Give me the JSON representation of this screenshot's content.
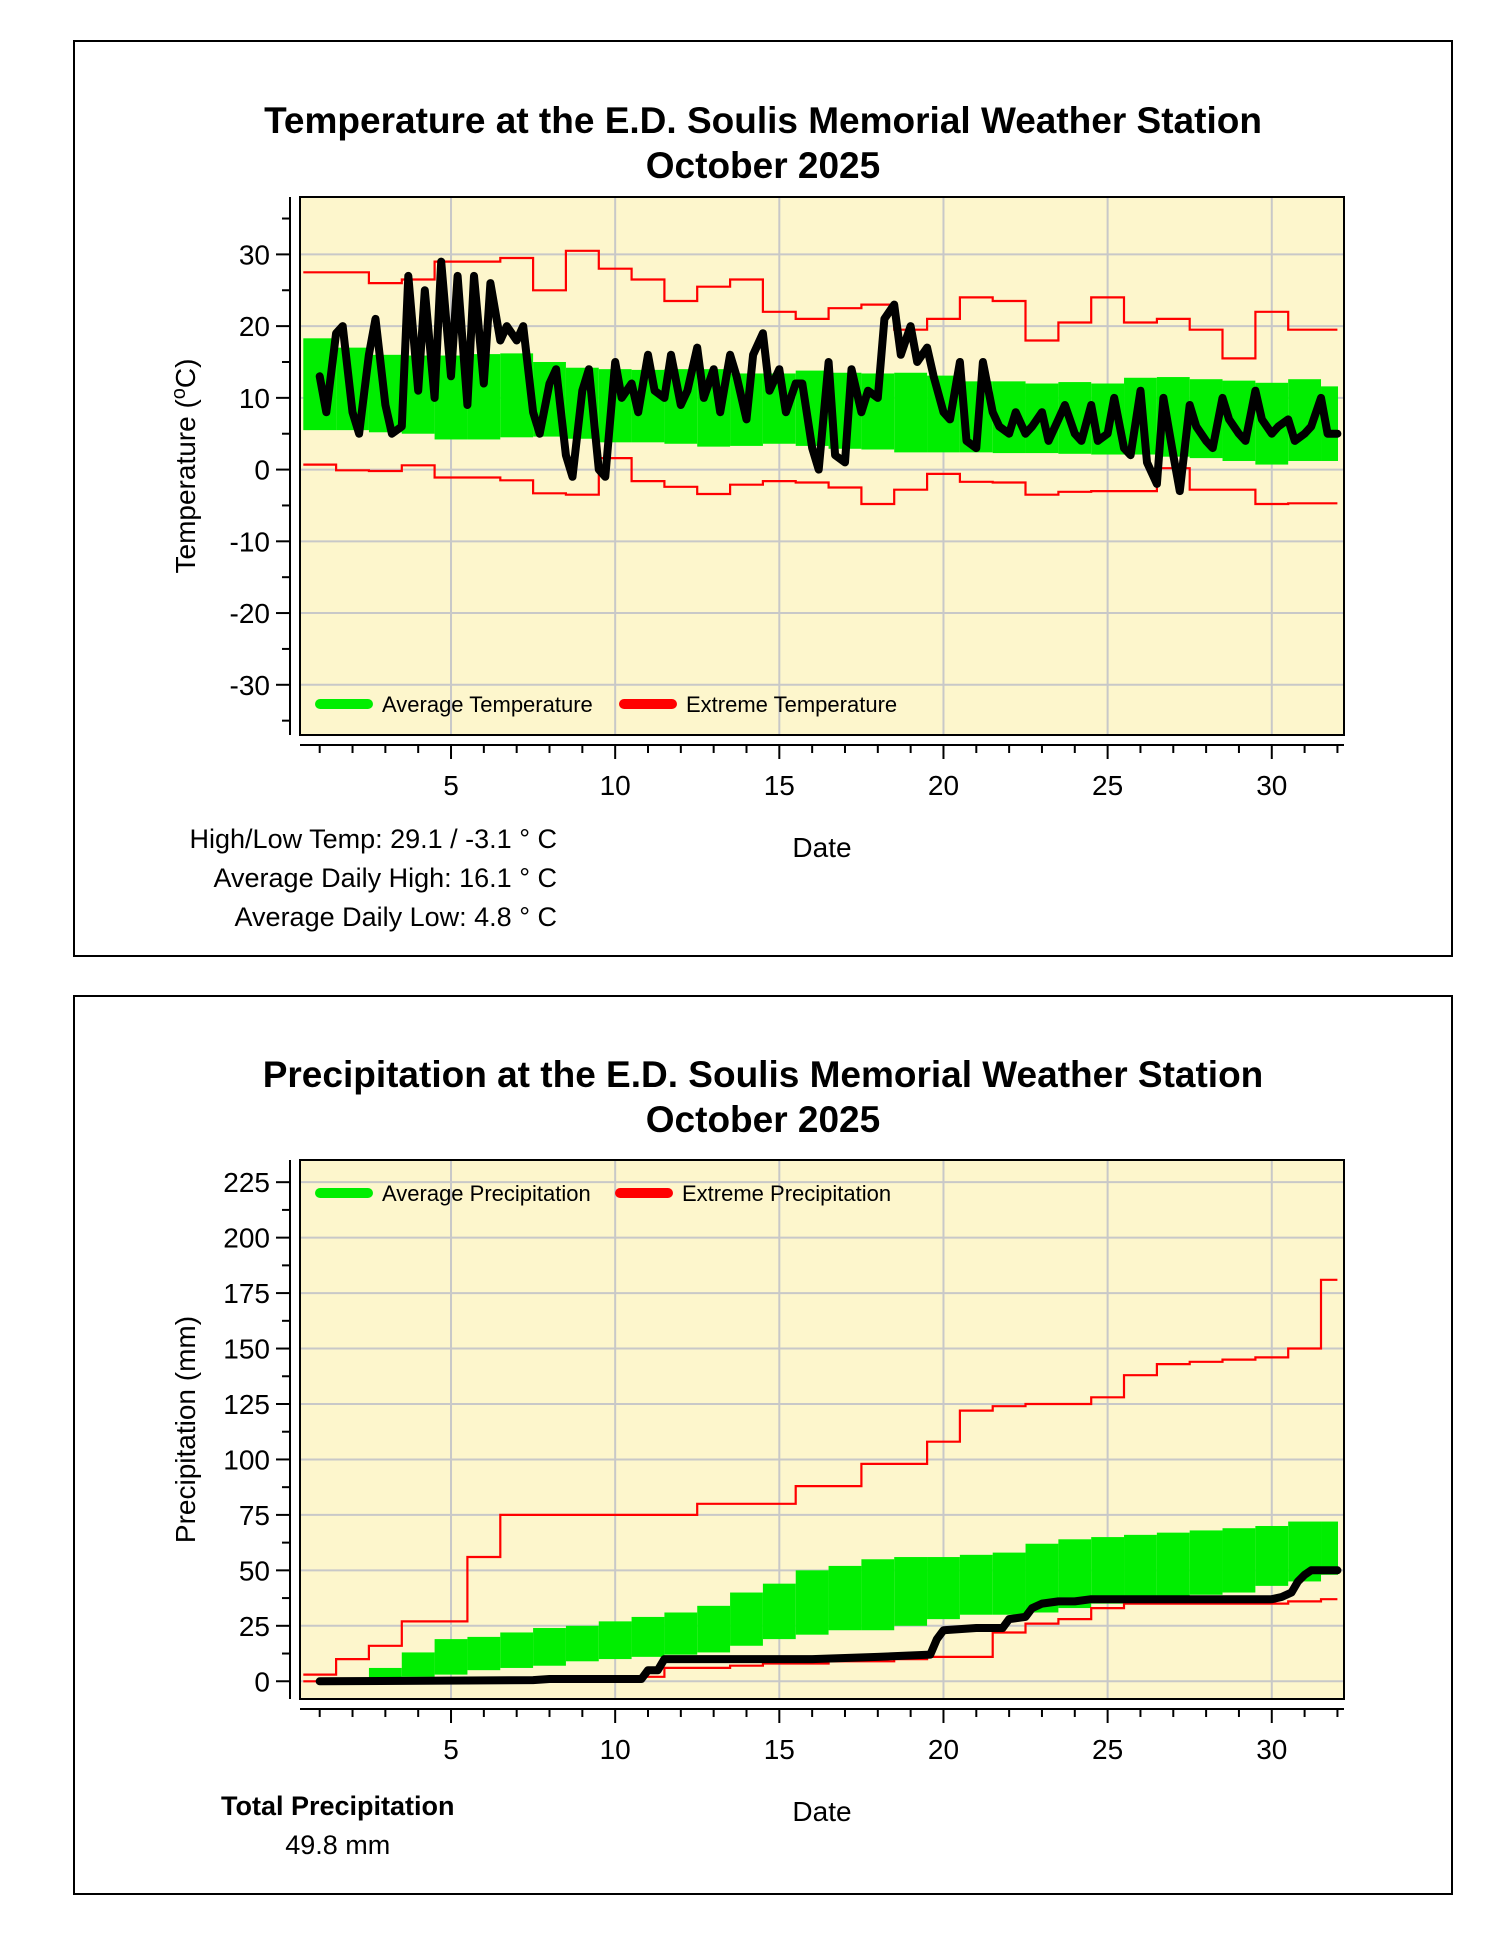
{
  "colors": {
    "plot_bg": "#fdf6cc",
    "grid": "#c8c8c8",
    "average": "#00ee00",
    "extreme": "#ff0000",
    "observed": "#000000"
  },
  "temperature_panel": {
    "title_line1": "Temperature at the E.D. Soulis Memorial Weather Station",
    "title_line2": "October 2025",
    "stats": {
      "high_low": "High/Low Temp:  29.1 / -3.1 ° C",
      "avg_high": "Average Daily High:  16.1 ° C",
      "avg_low": "Average Daily Low:  4.8 ° C"
    }
  },
  "precipitation_panel": {
    "title_line1": "Precipitation at the E.D. Soulis Memorial Weather Station",
    "title_line2": "October 2025",
    "total_label": "Total Precipitation",
    "total_value": "49.8 mm"
  },
  "chart_data": [
    {
      "type": "line",
      "title": "Temperature at the E.D. Soulis Memorial Weather Station October 2025",
      "xlabel": "Date",
      "ylabel": "Temperature (°C)",
      "xlim": [
        0.4,
        32.2
      ],
      "ylim": [
        -37,
        38
      ],
      "xticks": [
        5,
        10,
        15,
        20,
        25,
        30
      ],
      "yticks": [
        -30,
        -20,
        -10,
        0,
        10,
        20,
        30
      ],
      "legend": [
        "Average Temperature",
        "Extreme Temperature"
      ],
      "legend_position": "bottom-left",
      "series": [
        {
          "name": "Average Temperature",
          "kind": "band",
          "x": [
            1,
            2,
            3,
            4,
            5,
            6,
            7,
            8,
            9,
            10,
            11,
            12,
            13,
            14,
            15,
            16,
            17,
            18,
            19,
            20,
            21,
            22,
            23,
            24,
            25,
            26,
            27,
            28,
            29,
            30,
            31,
            32
          ],
          "low": [
            5.5,
            5.5,
            5.2,
            5,
            4.2,
            4.2,
            4.5,
            4.6,
            4.3,
            3.8,
            3.8,
            3.6,
            3.2,
            3.3,
            3.6,
            3.3,
            2.9,
            2.8,
            2.4,
            2.4,
            2.4,
            2.3,
            2.3,
            2.2,
            2.1,
            2.1,
            1.8,
            1.6,
            1.2,
            0.7,
            1.2,
            1.2
          ],
          "high": [
            18.3,
            17,
            16,
            15.9,
            15.9,
            16.1,
            16.2,
            15,
            14.2,
            14,
            13.9,
            14,
            14,
            13.4,
            13.4,
            13.8,
            13.5,
            13.4,
            13.5,
            13.1,
            12.3,
            12.3,
            12,
            12.2,
            12,
            12.8,
            12.9,
            12.6,
            12.4,
            12.1,
            12.6,
            11.6
          ]
        },
        {
          "name": "Extreme High",
          "kind": "step",
          "x": [
            1,
            2,
            3,
            4,
            5,
            6,
            7,
            8,
            9,
            10,
            11,
            12,
            13,
            14,
            15,
            16,
            17,
            18,
            19,
            20,
            21,
            22,
            23,
            24,
            25,
            26,
            27,
            28,
            29,
            30,
            31,
            32
          ],
          "values": [
            27.5,
            27.5,
            26,
            26.5,
            29,
            29,
            29.5,
            25,
            30.5,
            28,
            26.5,
            23.5,
            25.5,
            26.5,
            22,
            21,
            22.5,
            23,
            19.5,
            21,
            24,
            23.5,
            18,
            20.5,
            24,
            20.5,
            21,
            19.5,
            15.5,
            22,
            19.5,
            19.5
          ]
        },
        {
          "name": "Extreme Low",
          "kind": "step",
          "x": [
            1,
            2,
            3,
            4,
            5,
            6,
            7,
            8,
            9,
            10,
            11,
            12,
            13,
            14,
            15,
            16,
            17,
            18,
            19,
            20,
            21,
            22,
            23,
            24,
            25,
            26,
            27,
            28,
            29,
            30,
            31,
            32
          ],
          "values": [
            0.7,
            -0.1,
            -0.2,
            0.6,
            -1.1,
            -1.1,
            -1.5,
            -3.3,
            -3.5,
            1.6,
            -1.6,
            -2.4,
            -3.4,
            -2.1,
            -1.6,
            -1.8,
            -2.5,
            -4.8,
            -2.8,
            -0.6,
            -1.7,
            -1.8,
            -3.5,
            -3.1,
            -3,
            -3,
            0.2,
            -2.8,
            -2.8,
            -4.8,
            -4.7,
            -4.7
          ]
        },
        {
          "name": "Observed Temperature",
          "kind": "line",
          "x": [
            1,
            1.2,
            1.5,
            1.7,
            2,
            2.2,
            2.5,
            2.7,
            3,
            3.2,
            3.5,
            3.7,
            4,
            4.2,
            4.5,
            4.7,
            5,
            5.2,
            5.5,
            5.7,
            6,
            6.2,
            6.5,
            6.7,
            7,
            7.2,
            7.5,
            7.7,
            8,
            8.2,
            8.5,
            8.7,
            9,
            9.2,
            9.5,
            9.7,
            10,
            10.2,
            10.5,
            10.7,
            11,
            11.2,
            11.5,
            11.7,
            12,
            12.2,
            12.5,
            12.7,
            13,
            13.2,
            13.5,
            13.7,
            14,
            14.2,
            14.5,
            14.7,
            15,
            15.2,
            15.5,
            15.7,
            16,
            16.2,
            16.5,
            16.7,
            17,
            17.2,
            17.5,
            17.7,
            18,
            18.2,
            18.5,
            18.7,
            19,
            19.2,
            19.5,
            19.7,
            20,
            20.2,
            20.5,
            20.7,
            21,
            21.2,
            21.5,
            21.7,
            22,
            22.2,
            22.5,
            22.7,
            23,
            23.2,
            23.5,
            23.7,
            24,
            24.2,
            24.5,
            24.7,
            25,
            25.2,
            25.5,
            25.7,
            26,
            26.2,
            26.5,
            26.7,
            27,
            27.2,
            27.5,
            27.7,
            28,
            28.2,
            28.5,
            28.7,
            29,
            29.2,
            29.5,
            29.7,
            30,
            30.2,
            30.5,
            30.7,
            31,
            31.2,
            31.5,
            31.7,
            32
          ],
          "values": [
            13,
            8,
            19,
            20,
            8,
            5,
            16,
            21,
            9,
            5,
            6,
            27,
            11,
            25,
            10,
            29,
            13,
            27,
            9,
            27,
            12,
            26,
            18,
            20,
            18,
            20,
            8,
            5,
            12,
            14,
            2,
            -1,
            11,
            14,
            0,
            -1,
            15,
            10,
            12,
            8,
            16,
            11,
            10,
            16,
            9,
            11,
            17,
            10,
            14,
            8,
            16,
            13,
            7,
            16,
            19,
            11,
            14,
            8,
            12,
            12,
            3,
            0,
            15,
            2,
            1,
            14,
            8,
            11,
            10,
            21,
            23,
            16,
            20,
            15,
            17,
            13,
            8,
            7,
            15,
            4,
            3,
            15,
            8,
            6,
            5,
            8,
            5,
            6,
            8,
            4,
            7,
            9,
            5,
            4,
            9,
            4,
            5,
            10,
            3,
            2,
            11,
            1,
            -2,
            10,
            2,
            -3,
            9,
            6,
            4,
            3,
            10,
            7,
            5,
            4,
            11,
            7,
            5,
            6,
            7,
            4,
            5,
            6,
            10,
            5,
            5
          ]
        }
      ]
    },
    {
      "type": "line",
      "title": "Precipitation at the E.D. Soulis Memorial Weather Station October 2025",
      "xlabel": "Date",
      "ylabel": "Precipitation (mm)",
      "xlim": [
        0.4,
        32.2
      ],
      "ylim": [
        -8,
        235
      ],
      "xticks": [
        5,
        10,
        15,
        20,
        25,
        30
      ],
      "yticks": [
        0,
        25,
        50,
        75,
        100,
        125,
        150,
        175,
        200,
        225
      ],
      "legend": [
        "Average Precipitation",
        "Extreme Precipitation"
      ],
      "legend_position": "top-left",
      "series": [
        {
          "name": "Average Precipitation",
          "kind": "band",
          "x": [
            1,
            2,
            3,
            4,
            5,
            6,
            7,
            8,
            9,
            10,
            11,
            12,
            13,
            14,
            15,
            16,
            17,
            18,
            19,
            20,
            21,
            22,
            23,
            24,
            25,
            26,
            27,
            28,
            29,
            30,
            31,
            32
          ],
          "low": [
            0,
            0,
            0,
            2,
            3,
            5,
            6,
            7,
            9,
            10,
            11,
            12,
            13,
            16,
            19,
            21,
            23,
            23,
            25,
            28,
            30,
            30,
            31,
            33,
            35,
            37,
            38,
            39,
            40,
            43,
            45,
            48
          ],
          "high": [
            0,
            0,
            6,
            13,
            19,
            20,
            22,
            24,
            25,
            27,
            29,
            31,
            34,
            40,
            44,
            50,
            52,
            55,
            56,
            56,
            57,
            58,
            62,
            64,
            65,
            66,
            67,
            68,
            69,
            70,
            72,
            72
          ]
        },
        {
          "name": "Extreme Max",
          "kind": "step",
          "x": [
            1,
            2,
            3,
            4,
            5,
            6,
            7,
            8,
            9,
            10,
            11,
            12,
            13,
            14,
            15,
            16,
            17,
            18,
            19,
            20,
            21,
            22,
            23,
            24,
            25,
            26,
            27,
            28,
            29,
            30,
            31,
            32
          ],
          "values": [
            3,
            10,
            16,
            27,
            27,
            56,
            75,
            75,
            75,
            75,
            75,
            75,
            80,
            80,
            80,
            88,
            88,
            98,
            98,
            108,
            122,
            124,
            125,
            125,
            128,
            138,
            143,
            144,
            145,
            146,
            150,
            181
          ]
        },
        {
          "name": "Extreme Min",
          "kind": "step",
          "x": [
            1,
            2,
            3,
            4,
            5,
            6,
            7,
            8,
            9,
            10,
            11,
            12,
            13,
            14,
            15,
            16,
            17,
            18,
            19,
            20,
            21,
            22,
            23,
            24,
            25,
            26,
            27,
            28,
            29,
            30,
            31,
            32
          ],
          "values": [
            0,
            0,
            0,
            0,
            0,
            0,
            0,
            0,
            0,
            0,
            2,
            6,
            6,
            7,
            8,
            8,
            9,
            9,
            10,
            11,
            11,
            22,
            26,
            28,
            33,
            35,
            35,
            35,
            35,
            35,
            36,
            37
          ]
        },
        {
          "name": "Observed Precipitation",
          "kind": "line",
          "x": [
            1,
            7.5,
            8,
            10.8,
            11,
            11.3,
            11.5,
            13,
            14,
            16,
            18,
            19.6,
            19.8,
            20,
            21,
            21.8,
            22,
            22.5,
            22.7,
            23,
            23.5,
            24,
            24.5,
            25,
            26,
            27,
            28,
            29,
            30,
            30.3,
            30.6,
            30.8,
            31,
            31.2,
            31.5,
            32
          ],
          "values": [
            0,
            0.5,
            1,
            1,
            5,
            5,
            10,
            10,
            10,
            10,
            11,
            12,
            19,
            23,
            24,
            24,
            28,
            29,
            33,
            35,
            36,
            36,
            37,
            37,
            37,
            37,
            37,
            37,
            37,
            38,
            40,
            45,
            48,
            50,
            50,
            50
          ]
        }
      ]
    }
  ]
}
